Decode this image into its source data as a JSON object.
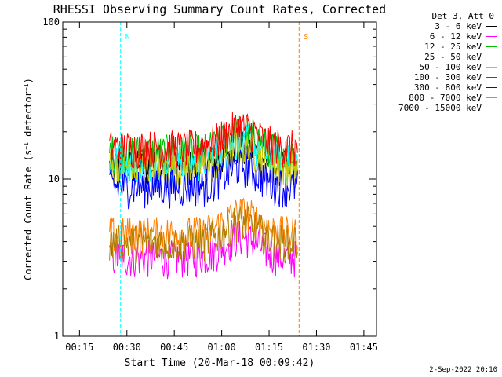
{
  "chart_data": {
    "type": "line",
    "title": "RHESSI Observing Summary Count Rates, Corrected",
    "xlabel": "Start Time (20-Mar-18 00:09:42)",
    "ylabel": "Corrected Count Rate (s⁻¹ detector⁻¹)",
    "yscale": "log",
    "ylim": [
      1,
      100
    ],
    "xlim": [
      "00:09:42",
      "01:49:00"
    ],
    "x_ticks": [
      "00:15",
      "00:30",
      "00:45",
      "01:00",
      "01:15",
      "01:30",
      "01:45"
    ],
    "y_ticks": [
      "1",
      "10",
      "100"
    ],
    "legend_title": "Det 3, Att 0",
    "legend_position": "right",
    "data_start": "00:24:30",
    "data_end": "01:24:00",
    "series": [
      {
        "name": "3 - 6 keV",
        "color": "#000000",
        "level": 12
      },
      {
        "name": "6 - 12 keV",
        "color": "#ff00ff",
        "level": 3.2
      },
      {
        "name": "12 - 25 keV",
        "color": "#00c000",
        "level": 15
      },
      {
        "name": "25 - 50 keV",
        "color": "#00ffff",
        "level": 13
      },
      {
        "name": "50 - 100 keV",
        "color": "#c8c800",
        "level": 12
      },
      {
        "name": "100 - 300 keV",
        "color": "#ff0000",
        "level": 16
      },
      {
        "name": "300 - 800 keV",
        "color": "#0000ff",
        "level": 9
      },
      {
        "name": "800 - 7000 keV",
        "color": "#ff8000",
        "level": 4.5
      },
      {
        "name": "7000 - 15000 keV",
        "color": "#b08000",
        "level": 4
      }
    ],
    "annotations": [
      {
        "label": "N",
        "x": "00:28:00",
        "color": "#00ffff"
      },
      {
        "label": "S",
        "x": "01:24:30",
        "color": "#ff8000"
      }
    ]
  },
  "footer_date": "2-Sep-2022 20:10"
}
